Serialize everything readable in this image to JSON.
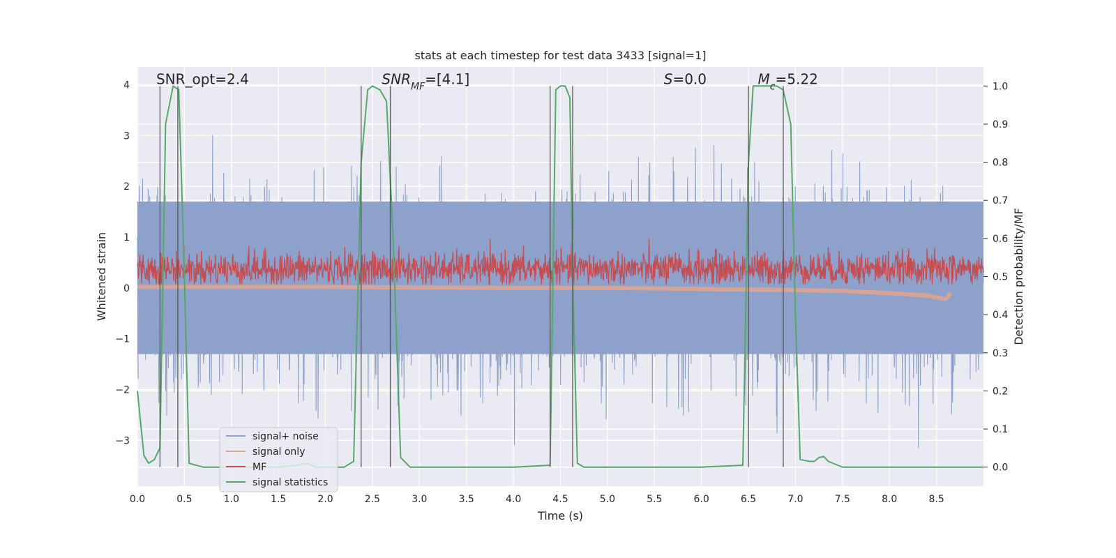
{
  "chart_data": {
    "type": "line",
    "title": "stats at each timestep for test data 3433 [signal=1]",
    "xlabel": "Time (s)",
    "ylabel_left": "Whitened strain",
    "ylabel_right": "Detection probability/MF",
    "xlim": [
      0,
      9.0
    ],
    "ylim_left": [
      -3.9,
      4.35
    ],
    "ylim_right": [
      -0.05,
      1.05
    ],
    "xticks": [
      0.0,
      0.5,
      1.0,
      1.5,
      2.0,
      2.5,
      3.0,
      3.5,
      4.0,
      4.5,
      5.0,
      5.5,
      6.0,
      6.5,
      7.0,
      7.5,
      8.0,
      8.5
    ],
    "xtick_labels": [
      "0.0",
      "0.5",
      "1.0",
      "1.5",
      "2.0",
      "2.5",
      "3.0",
      "3.5",
      "4.0",
      "4.5",
      "5.0",
      "5.5",
      "6.0",
      "6.5",
      "7.0",
      "7.5",
      "8.0",
      "8.5"
    ],
    "yticks_left": [
      4,
      3,
      2,
      1,
      0,
      -1,
      -2,
      -3
    ],
    "ytick_labels_left": [
      "4",
      "3",
      "2",
      "1",
      "0",
      "−1",
      "−2",
      "−3"
    ],
    "yticks_right": [
      1.0,
      0.9,
      0.8,
      0.7,
      0.6,
      0.5,
      0.4,
      0.3,
      0.2,
      0.1,
      0.0
    ],
    "ytick_labels_right": [
      "1.0",
      "0.9",
      "0.8",
      "0.7",
      "0.6",
      "0.5",
      "0.4",
      "0.3",
      "0.2",
      "0.1",
      "0.0"
    ],
    "grid": true,
    "legend_placement": "lower-left",
    "annotations": [
      {
        "x": 0.2,
        "y": 4.0,
        "text": "SNR_opt=2.4"
      },
      {
        "x": 2.6,
        "y": 4.0,
        "text": "SNR_MF=[4.1]"
      },
      {
        "x": 5.6,
        "y": 4.0,
        "text": "S=0.0"
      },
      {
        "x": 6.6,
        "y": 4.0,
        "text": "M_c=5.22"
      }
    ],
    "vertical_lines": [
      0.24,
      0.43,
      2.38,
      2.69,
      4.39,
      4.63,
      6.5,
      6.87
    ],
    "series": [
      {
        "name": "signal+ noise",
        "axis": "left",
        "color": "#8da1cb",
        "style": "noise",
        "band_low": -1.3,
        "band_high": 1.7,
        "peak_max": 3.5,
        "trough_min": -3.3
      },
      {
        "name": "signal only",
        "axis": "left",
        "color": "#e8a58a",
        "x": [
          0.0,
          1.0,
          2.0,
          3.0,
          4.0,
          5.0,
          6.0,
          6.5,
          7.0,
          7.5,
          8.0,
          8.4,
          8.6,
          8.65
        ],
        "y": [
          0.02,
          0.02,
          0.02,
          0.01,
          0.0,
          0.0,
          -0.02,
          -0.03,
          -0.04,
          -0.06,
          -0.1,
          -0.15,
          -0.22,
          -0.1
        ]
      },
      {
        "name": "MF",
        "axis": "right",
        "color": "#c44e52",
        "style": "noise",
        "center": 0.52,
        "amp": 0.04,
        "min": 0.48,
        "max": 0.6
      },
      {
        "name": "signal statistics",
        "axis": "right",
        "color": "#55a868",
        "x": [
          0.0,
          0.07,
          0.12,
          0.18,
          0.24,
          0.3,
          0.38,
          0.44,
          0.5,
          0.55,
          0.7,
          1.0,
          1.5,
          1.7,
          1.8,
          1.9,
          2.0,
          2.2,
          2.3,
          2.38,
          2.45,
          2.5,
          2.58,
          2.65,
          2.72,
          2.8,
          2.9,
          3.5,
          4.0,
          4.39,
          4.45,
          4.5,
          4.55,
          4.6,
          4.63,
          4.68,
          4.75,
          5.0,
          5.5,
          6.0,
          6.44,
          6.5,
          6.55,
          6.6,
          6.7,
          6.8,
          6.87,
          6.95,
          7.0,
          7.05,
          7.15,
          7.2,
          7.25,
          7.3,
          7.35,
          7.45,
          7.5,
          8.0,
          8.5,
          9.0
        ],
        "y": [
          0.2,
          0.03,
          0.01,
          0.02,
          0.05,
          0.9,
          1.0,
          0.99,
          0.5,
          0.01,
          0.0,
          0.0,
          0.0,
          0.005,
          0.01,
          0.0,
          0.0,
          0.0,
          0.015,
          0.8,
          0.99,
          1.0,
          0.99,
          0.96,
          0.6,
          0.025,
          0.0,
          0.0,
          0.0,
          0.005,
          0.99,
          1.0,
          1.0,
          0.97,
          0.5,
          0.01,
          0.0,
          0.0,
          0.0,
          0.0,
          0.005,
          0.8,
          1.0,
          1.0,
          1.0,
          1.0,
          0.99,
          0.9,
          0.4,
          0.02,
          0.015,
          0.015,
          0.025,
          0.028,
          0.015,
          0.005,
          0.0,
          0.0,
          0.0,
          0.0
        ]
      }
    ]
  }
}
